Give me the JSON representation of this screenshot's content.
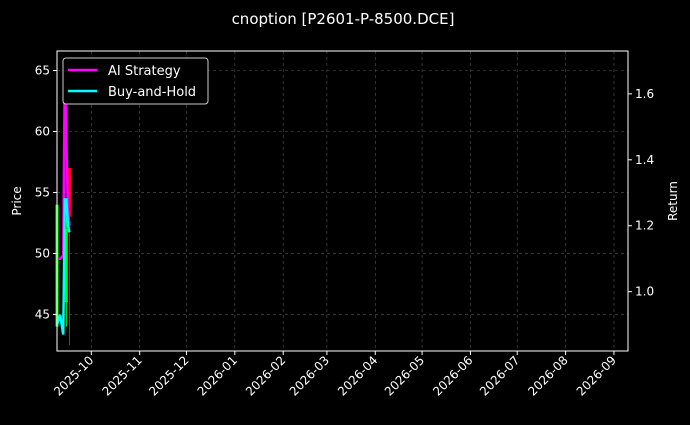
{
  "chart_data": {
    "type": "line",
    "title": "cnoption [P2601-P-8500.DCE]",
    "ylabel_left": "Price",
    "ylabel_right": "Return",
    "ylim_left": [
      42,
      66.6
    ],
    "ylim_right": [
      0.82,
      1.73
    ],
    "xlim": [
      "2025-09-09",
      "2026-09-10"
    ],
    "grid": true,
    "legend_placement": "top-left",
    "x_ticks": [
      "2025-10",
      "2025-11",
      "2025-12",
      "2026-01",
      "2026-02",
      "2026-03",
      "2026-04",
      "2026-05",
      "2026-06",
      "2026-07",
      "2026-08",
      "2026-09"
    ],
    "y_ticks_left": [
      45,
      50,
      55,
      60,
      65
    ],
    "y_ticks_right": [
      1.0,
      1.2,
      1.4,
      1.6
    ],
    "candles": [
      {
        "date": "2025-09-09",
        "open": 44,
        "close": 54,
        "low": 43,
        "high": 55,
        "color": "#00ff00"
      },
      {
        "date": "2025-09-15",
        "open": 46,
        "close": 52,
        "low": 44,
        "high": 53,
        "color": "#00ff00"
      },
      {
        "date": "2025-09-17",
        "open": 57,
        "close": 53,
        "low": 42.5,
        "high": 57,
        "color": "#ff0000"
      }
    ],
    "series": [
      {
        "name": "AI Strategy",
        "color": "#ff00ff",
        "x": [
          "2025-09-09",
          "2025-09-11",
          "2025-09-13",
          "2025-09-14",
          "2025-09-16",
          "2025-09-17"
        ],
        "values": [
          1.1,
          1.1,
          1.11,
          1.68,
          1.25,
          1.2
        ]
      },
      {
        "name": "Buy-and-Hold",
        "color": "#00ffff",
        "x": [
          "2025-09-09",
          "2025-09-11",
          "2025-09-13",
          "2025-09-14",
          "2025-09-15",
          "2025-09-16",
          "2025-09-17"
        ],
        "values": [
          0.9,
          0.93,
          0.87,
          1.28,
          1.28,
          1.2,
          1.18
        ]
      }
    ]
  }
}
